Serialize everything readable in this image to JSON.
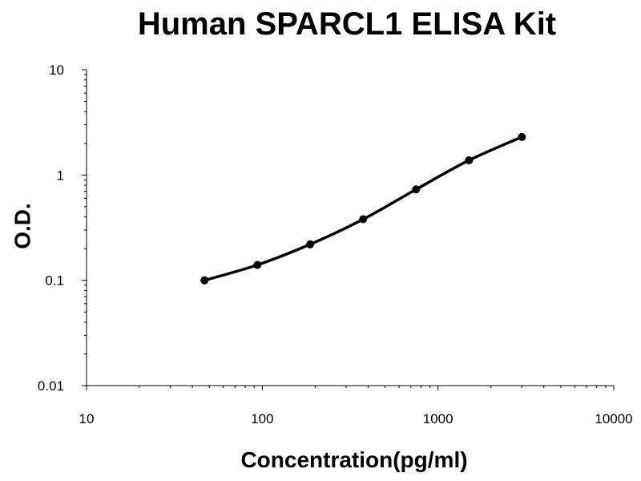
{
  "chart_data": {
    "type": "line",
    "title": "Human SPARCL1 ELISA Kit",
    "xlabel": "Concentration(pg/ml)",
    "ylabel": "O.D.",
    "x_scale": "log",
    "y_scale": "log",
    "xlim": [
      10,
      10000
    ],
    "ylim": [
      0.01,
      10
    ],
    "x_tick_labels": [
      "10",
      "100",
      "1000",
      "10000"
    ],
    "y_tick_labels": [
      "10",
      "1",
      "0.1",
      "0.01"
    ],
    "grid": false,
    "legend": "none",
    "series": [
      {
        "x": [
          46.9,
          93.8,
          187.5,
          375,
          750,
          1500,
          3000
        ],
        "y": [
          0.1,
          0.14,
          0.22,
          0.38,
          0.73,
          1.38,
          2.3
        ]
      }
    ],
    "colors": {
      "line": "#000000",
      "axis": "#000000"
    }
  }
}
